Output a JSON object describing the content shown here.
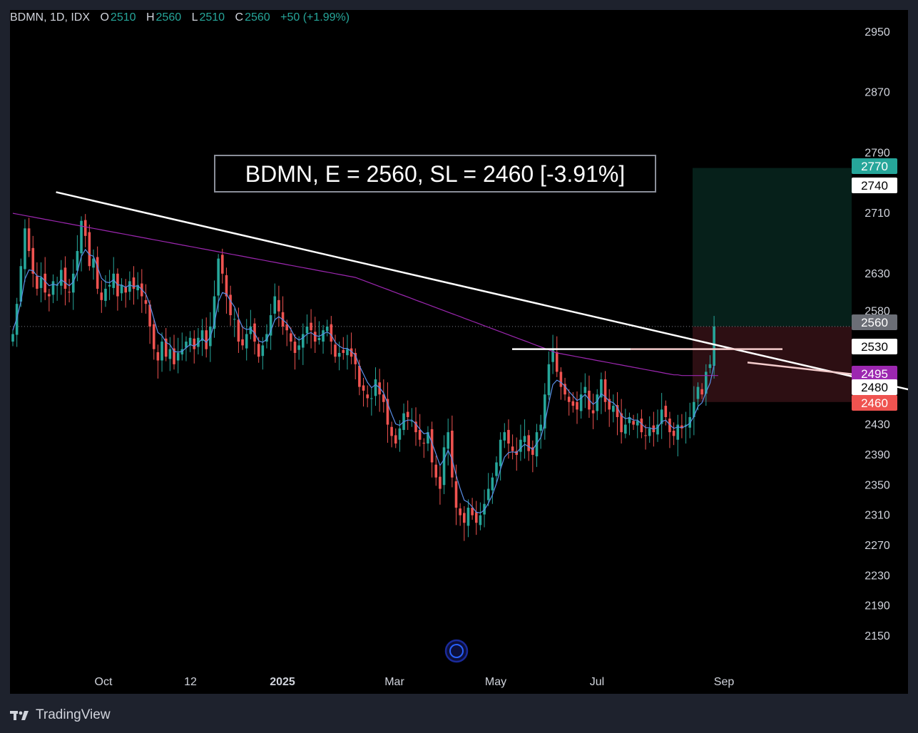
{
  "header": {
    "symbol_info": "BDMN, 1D, IDX",
    "o_label": "O",
    "o_value": "2510",
    "h_label": "H",
    "h_value": "2560",
    "l_label": "L",
    "l_value": "2510",
    "c_label": "C",
    "c_value": "2560",
    "change": "+50 (+1.99%)"
  },
  "annotation_text": "BDMN, E = 2560, SL = 2460 [-3.91%]",
  "footer": {
    "brand": "TradingView"
  },
  "colors": {
    "up": "#26a69a",
    "down": "#ef5350",
    "ema_fast": "#5b8fe8",
    "ema_slow": "#9c27b0",
    "trendline": "#ffffff",
    "target_zone": "#06201a",
    "stop_zone": "#2d0f13",
    "background": "#000000",
    "frame": "#1e222d"
  },
  "chart_data": {
    "type": "candlestick",
    "symbol": "BDMN",
    "interval": "1D",
    "exchange": "IDX",
    "x_labels": [
      "Oct",
      "12",
      "2025",
      "Mar",
      "May",
      "Jul",
      "Sep"
    ],
    "y_ticks": [
      2950,
      2870,
      2790,
      2710,
      2630,
      2580,
      2430,
      2390,
      2350,
      2310,
      2270,
      2230,
      2190,
      2150
    ],
    "ylim": [
      2134,
      2960
    ],
    "price_tags": [
      {
        "value": 2770,
        "label": "2770",
        "bg": "#26a69a",
        "fg": "#ffffff"
      },
      {
        "value": 2740,
        "label": "2740",
        "bg": "#ffffff",
        "fg": "#000000"
      },
      {
        "value": 2560,
        "label": "2560",
        "bg": "#6b6e76",
        "fg": "#ffffff"
      },
      {
        "value": 2530,
        "label": "2530",
        "bg": "#ffffff",
        "fg": "#000000"
      },
      {
        "value": 2495,
        "label": "2495",
        "bg": "#9c27b0",
        "fg": "#ffffff"
      },
      {
        "value": 2480,
        "label": "2480",
        "bg": "#ffffff",
        "fg": "#000000"
      },
      {
        "value": 2460,
        "label": "2460",
        "bg": "#ef5350",
        "fg": "#ffffff"
      }
    ],
    "entry": 2560,
    "stop_loss": 2460,
    "target": 2770,
    "resistance": 2530,
    "series": [
      {
        "name": "close",
        "values": [
          2550,
          2590,
          2640,
          2690,
          2660,
          2630,
          2610,
          2625,
          2605,
          2600,
          2620,
          2615,
          2635,
          2610,
          2605,
          2630,
          2660,
          2700,
          2680,
          2640,
          2650,
          2610,
          2595,
          2610,
          2615,
          2630,
          2600,
          2615,
          2605,
          2620,
          2610,
          2615,
          2600,
          2590,
          2560,
          2530,
          2515,
          2540,
          2520,
          2530,
          2510,
          2525,
          2530,
          2540,
          2545,
          2530,
          2545,
          2555,
          2530,
          2560,
          2600,
          2650,
          2630,
          2600,
          2575,
          2570,
          2540,
          2535,
          2550,
          2560,
          2540,
          2520,
          2535,
          2550,
          2575,
          2600,
          2580,
          2560,
          2555,
          2540,
          2525,
          2535,
          2550,
          2560,
          2555,
          2540,
          2545,
          2555,
          2560,
          2540,
          2520,
          2525,
          2525,
          2530,
          2520,
          2510,
          2480,
          2475,
          2465,
          2465,
          2490,
          2470,
          2460,
          2430,
          2415,
          2405,
          2425,
          2445,
          2440,
          2435,
          2420,
          2410,
          2405,
          2420,
          2380,
          2360,
          2345,
          2400,
          2420,
          2360,
          2320,
          2310,
          2300,
          2320,
          2310,
          2300,
          2310,
          2325,
          2345,
          2360,
          2380,
          2410,
          2420,
          2405,
          2395,
          2390,
          2410,
          2415,
          2395,
          2390,
          2420,
          2430,
          2470,
          2510,
          2530,
          2500,
          2480,
          2470,
          2460,
          2455,
          2450,
          2470,
          2480,
          2450,
          2445,
          2470,
          2490,
          2460,
          2450,
          2455,
          2440,
          2420,
          2430,
          2440,
          2430,
          2435,
          2420,
          2415,
          2425,
          2420,
          2430,
          2450,
          2440,
          2420,
          2415,
          2430,
          2425,
          2430,
          2440,
          2460,
          2480,
          2470,
          2500,
          2510,
          2560
        ]
      },
      {
        "name": "ema_fast",
        "values": [
          2555,
          2571,
          2593,
          2623,
          2635,
          2634,
          2627,
          2626,
          2620,
          2614,
          2616,
          2615,
          2622,
          2618,
          2614,
          2619,
          2632,
          2653,
          2662,
          2655,
          2653,
          2639,
          2624,
          2619,
          2618,
          2622,
          2615,
          2615,
          2612,
          2615,
          2613,
          2614,
          2609,
          2603,
          2589,
          2570,
          2552,
          2548,
          2539,
          2536,
          2527,
          2526,
          2527,
          2532,
          2536,
          2534,
          2538,
          2544,
          2539,
          2546,
          2564,
          2593,
          2605,
          2603,
          2594,
          2586,
          2571,
          2559,
          2556,
          2557,
          2551,
          2541,
          2539,
          2543,
          2554,
          2569,
          2573,
          2569,
          2564,
          2556,
          2546,
          2542,
          2545,
          2550,
          2552,
          2548,
          2547,
          2550,
          2553,
          2549,
          2539,
          2534,
          2531,
          2531,
          2527,
          2522,
          2508,
          2497,
          2486,
          2479,
          2483,
          2479,
          2472,
          2458,
          2444,
          2431,
          2429,
          2434,
          2436,
          2436,
          2431,
          2424,
          2418,
          2419,
          2406,
          2391,
          2376,
          2384,
          2396,
          2384,
          2363,
          2345,
          2330,
          2327,
          2321,
          2314,
          2313,
          2317,
          2326,
          2337,
          2352,
          2371,
          2387,
          2393,
          2394,
          2393,
          2399,
          2404,
          2401,
          2397,
          2405,
          2413,
          2432,
          2459,
          2483,
          2489,
          2486,
          2481,
          2474,
          2468,
          2462,
          2465,
          2470,
          2463,
          2457,
          2461,
          2471,
          2467,
          2461,
          2459,
          2453,
          2442,
          2438,
          2439,
          2436,
          2436,
          2431,
          2426,
          2426,
          2424,
          2426,
          2434,
          2436,
          2430,
          2425,
          2427,
          2426,
          2428,
          2432,
          2441,
          2454,
          2459,
          2473,
          2485,
          2509
        ]
      },
      {
        "name": "ema_slow",
        "values": [
          2710,
          2709,
          2708,
          2707,
          2706,
          2705,
          2704,
          2703,
          2702,
          2701,
          2700,
          2699,
          2698,
          2697,
          2696,
          2695,
          2694,
          2693,
          2692,
          2691,
          2690,
          2689,
          2688,
          2687,
          2686,
          2685,
          2684,
          2683,
          2682,
          2681,
          2680,
          2679,
          2678,
          2677,
          2676,
          2675,
          2674,
          2673,
          2672,
          2671,
          2670,
          2669,
          2668,
          2667,
          2666,
          2665,
          2664,
          2663,
          2662,
          2661,
          2660,
          2659,
          2658,
          2657,
          2656,
          2655,
          2654,
          2653,
          2652,
          2651,
          2650,
          2649,
          2648,
          2647,
          2646,
          2645,
          2644,
          2643,
          2642,
          2641,
          2640,
          2639,
          2638,
          2637,
          2636,
          2635,
          2634,
          2633,
          2632,
          2631,
          2630,
          2629,
          2628,
          2627,
          2626,
          2625,
          2623,
          2621,
          2619,
          2617,
          2615,
          2613,
          2611,
          2609,
          2607,
          2605,
          2603,
          2601,
          2599,
          2597,
          2595,
          2593,
          2591,
          2589,
          2587,
          2585,
          2583,
          2581,
          2579,
          2577,
          2575,
          2573,
          2571,
          2569,
          2567,
          2565,
          2563,
          2561,
          2559,
          2557,
          2555,
          2553,
          2551,
          2549,
          2547,
          2545,
          2543,
          2541,
          2539,
          2537,
          2535,
          2533,
          2531,
          2529,
          2527,
          2525,
          2524,
          2523,
          2522,
          2521,
          2520,
          2519,
          2518,
          2517,
          2516,
          2515,
          2514,
          2513,
          2512,
          2511,
          2510,
          2509,
          2508,
          2507,
          2506,
          2505,
          2504,
          2503,
          2502,
          2501,
          2500,
          2499,
          2498,
          2497,
          2496,
          2496,
          2495,
          2495,
          2495,
          2495,
          2495,
          2495,
          2495,
          2495,
          2495,
          2495
        ]
      }
    ],
    "trendline": {
      "from": {
        "index": 4,
        "price": 2738
      },
      "to": {
        "index": 230,
        "price": 2467
      }
    },
    "grid": false
  }
}
